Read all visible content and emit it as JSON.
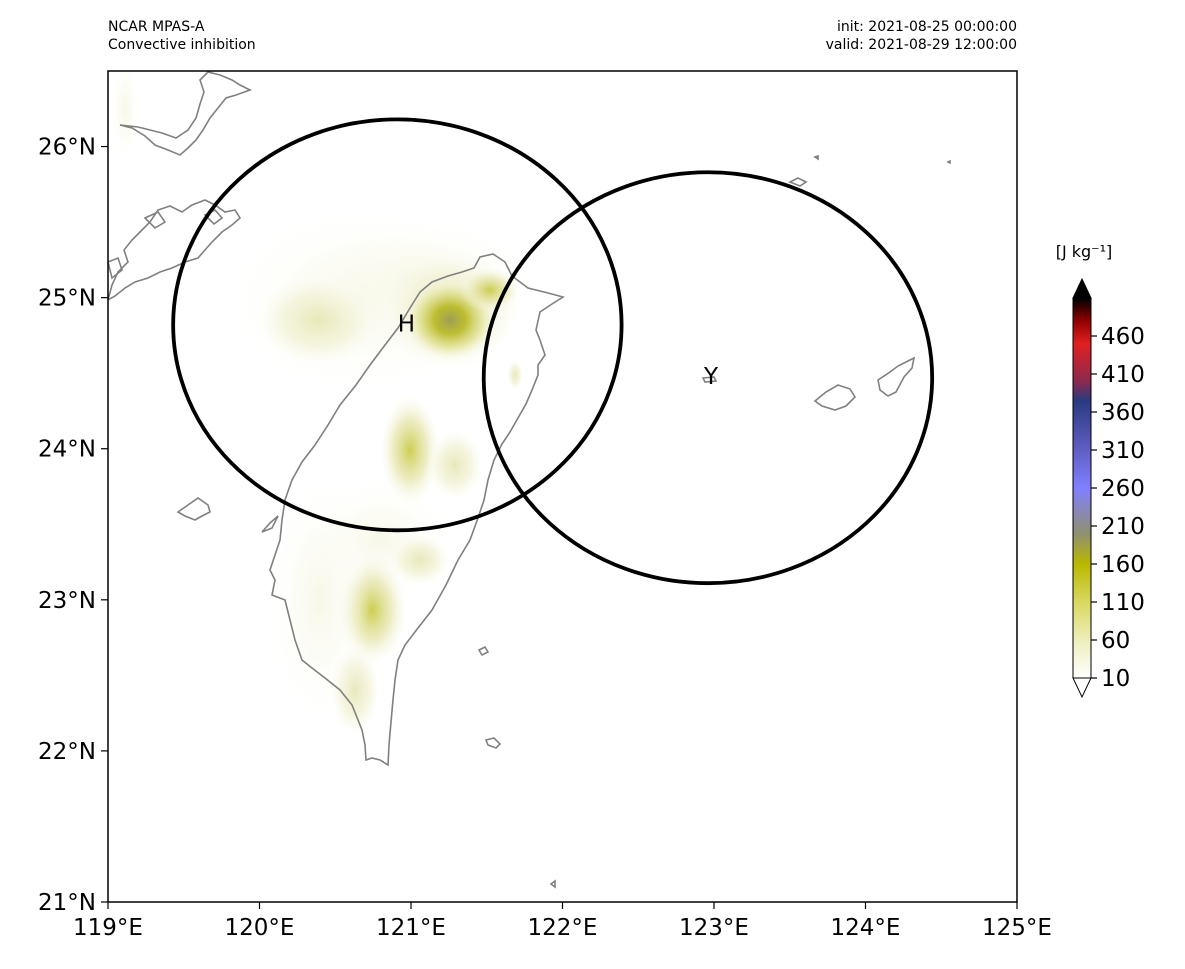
{
  "header": {
    "model": "NCAR MPAS-A",
    "field": "Convective inhibition",
    "init": "init: 2021-08-25 00:00:00",
    "valid": "valid: 2021-08-29 12:00:00"
  },
  "map": {
    "lon_range": [
      119,
      125
    ],
    "lat_range": [
      21,
      26.5
    ],
    "lon_ticks": [
      {
        "value": 119,
        "label": "119°E"
      },
      {
        "value": 120,
        "label": "120°E"
      },
      {
        "value": 121,
        "label": "121°E"
      },
      {
        "value": 122,
        "label": "122°E"
      },
      {
        "value": 123,
        "label": "123°E"
      },
      {
        "value": 124,
        "label": "124°E"
      },
      {
        "value": 125,
        "label": "125°E"
      }
    ],
    "lat_ticks": [
      {
        "value": 21,
        "label": "21°N"
      },
      {
        "value": 22,
        "label": "22°N"
      },
      {
        "value": 23,
        "label": "23°N"
      },
      {
        "value": 24,
        "label": "24°N"
      },
      {
        "value": 25,
        "label": "25°N"
      },
      {
        "value": 26,
        "label": "26°N"
      }
    ],
    "markers": [
      {
        "label": "H",
        "lon": 120.97,
        "lat": 24.82
      },
      {
        "label": "Y",
        "lon": 122.98,
        "lat": 24.47
      }
    ],
    "circles": [
      {
        "center_lon": 120.91,
        "center_lat": 24.82,
        "radius_lon": 1.48,
        "radius_lat": 1.36
      },
      {
        "center_lon": 122.96,
        "center_lat": 24.47,
        "radius_lon": 1.48,
        "radius_lat": 1.36
      }
    ],
    "colors": {
      "coastline": "#808080",
      "circle": "#000000"
    }
  },
  "colorbar": {
    "units": "[J kg⁻¹]",
    "tick_labels": [
      "10",
      "60",
      "110",
      "160",
      "210",
      "260",
      "310",
      "360",
      "410",
      "460"
    ],
    "range": [
      10,
      510
    ],
    "extend": "both",
    "stops": [
      {
        "value": 10,
        "color": "#ffffff"
      },
      {
        "value": 60,
        "color": "#eeeebb"
      },
      {
        "value": 110,
        "color": "#d8d860"
      },
      {
        "value": 160,
        "color": "#b8b800"
      },
      {
        "value": 200,
        "color": "#909070"
      },
      {
        "value": 260,
        "color": "#8080ff"
      },
      {
        "value": 320,
        "color": "#5858b8"
      },
      {
        "value": 375,
        "color": "#2a3a80"
      },
      {
        "value": 400,
        "color": "#8a2a50"
      },
      {
        "value": 450,
        "color": "#e02020"
      },
      {
        "value": 480,
        "color": "#900000"
      },
      {
        "value": 510,
        "color": "#000000"
      }
    ]
  },
  "chart_data": {
    "type": "map",
    "title": "Convective inhibition",
    "xlabel": "",
    "ylabel": "",
    "xlim": [
      119,
      125
    ],
    "ylim": [
      21,
      26.5
    ],
    "series": [
      {
        "name": "H",
        "x": [
          120.97
        ],
        "y": [
          24.82
        ]
      },
      {
        "name": "Y",
        "x": [
          122.98
        ],
        "y": [
          24.47
        ]
      }
    ]
  }
}
